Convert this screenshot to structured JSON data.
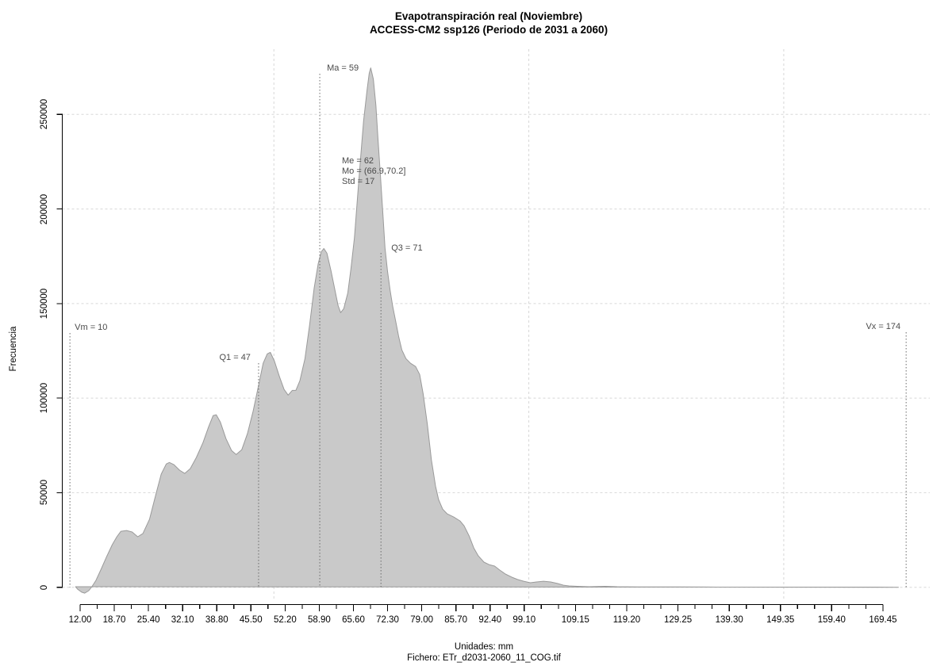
{
  "title": {
    "line1": "Evapotranspiración real (Noviembre)",
    "line2": "ACCESS-CM2 ssp126 (Periodo de 2031 a 2060)"
  },
  "footer": {
    "units": "Unidades: mm",
    "file": "Fichero: ETr_d2031-2060_11_COG.tif"
  },
  "axes": {
    "y": {
      "label": "Frecuencia",
      "tick_values": [
        0,
        50000,
        100000,
        150000,
        200000,
        250000
      ],
      "tick_labels": [
        "0",
        "50000",
        "100000",
        "150000",
        "200000",
        "250000"
      ]
    },
    "x": {
      "minor_step": 3.35,
      "start": 12.0,
      "end": 169.45,
      "major_values": [
        12.0,
        18.7,
        25.4,
        32.1,
        38.8,
        45.5,
        52.2,
        58.9,
        65.6,
        72.3,
        79.0,
        85.7,
        92.4,
        99.1,
        109.15,
        119.2,
        129.25,
        139.3,
        149.35,
        159.4,
        169.45
      ],
      "major_labels": [
        "12.00",
        "18.70",
        "25.40",
        "32.10",
        "38.80",
        "45.50",
        "52.20",
        "58.90",
        "65.60",
        "72.30",
        "79.00",
        "85.70",
        "92.40",
        "99.10",
        "109.15",
        "119.20",
        "129.25",
        "139.30",
        "149.35",
        "159.40",
        "169.45"
      ]
    }
  },
  "chart_data": {
    "type": "area",
    "title": "Evapotranspiración real (Noviembre) — ACCESS-CM2 ssp126 (Periodo de 2031 a 2060)",
    "xlabel": "Unidades: mm",
    "ylabel": "Frecuencia",
    "xlim": [
      12.0,
      181.0
    ],
    "ylim": [
      0,
      250000
    ],
    "grid": {
      "h_values": [
        0,
        50000,
        100000,
        150000,
        200000,
        250000
      ],
      "v_values": [
        50,
        100,
        150
      ]
    },
    "stats": {
      "Vm": 10,
      "Q1": 47,
      "Ma": 59,
      "Me": 62,
      "Mo": "(66.9,70.2]",
      "Std": 17,
      "Q3": 71,
      "Vx": 174
    },
    "stats_box": [
      "Me = 62",
      "Mo = (66.9,70.2]",
      "Std = 17"
    ],
    "markers": [
      {
        "id": "Vm",
        "label": "Vm = 10",
        "value": 10
      },
      {
        "id": "Q1",
        "label": "Q1 = 47",
        "value": 47
      },
      {
        "id": "Ma",
        "label": "Ma = 59",
        "value": 59
      },
      {
        "id": "Q3",
        "label": "Q3 = 71",
        "value": 71
      },
      {
        "id": "Vx",
        "label": "Vx = 174",
        "value": 174
      }
    ],
    "points": [
      [
        11.1,
        300
      ],
      [
        11.5,
        -1000
      ],
      [
        12.3,
        -2600
      ],
      [
        12.9,
        -3100
      ],
      [
        13.7,
        -1800
      ],
      [
        14.3,
        300
      ],
      [
        15.1,
        3600
      ],
      [
        16.1,
        9500
      ],
      [
        17.2,
        16200
      ],
      [
        18.3,
        22500
      ],
      [
        19.2,
        26700
      ],
      [
        20.0,
        29600
      ],
      [
        21.1,
        30000
      ],
      [
        22.2,
        29200
      ],
      [
        23.3,
        26700
      ],
      [
        24.3,
        28400
      ],
      [
        25.6,
        35900
      ],
      [
        26.8,
        48500
      ],
      [
        27.9,
        59800
      ],
      [
        28.9,
        65200
      ],
      [
        29.5,
        66000
      ],
      [
        30.4,
        64800
      ],
      [
        31.5,
        61900
      ],
      [
        32.5,
        60200
      ],
      [
        33.6,
        62700
      ],
      [
        34.8,
        68600
      ],
      [
        36.1,
        76500
      ],
      [
        37.2,
        84900
      ],
      [
        38.1,
        90800
      ],
      [
        38.7,
        91200
      ],
      [
        39.5,
        87400
      ],
      [
        40.6,
        78600
      ],
      [
        41.7,
        72300
      ],
      [
        42.6,
        70200
      ],
      [
        43.7,
        72700
      ],
      [
        44.8,
        81100
      ],
      [
        45.9,
        92800
      ],
      [
        47.0,
        106700
      ],
      [
        47.9,
        118400
      ],
      [
        48.7,
        123400
      ],
      [
        49.3,
        124200
      ],
      [
        50.1,
        119600
      ],
      [
        51.1,
        111300
      ],
      [
        52.0,
        104600
      ],
      [
        52.8,
        101600
      ],
      [
        53.6,
        104100
      ],
      [
        54.3,
        104100
      ],
      [
        55.1,
        109200
      ],
      [
        56.1,
        120900
      ],
      [
        57.0,
        138500
      ],
      [
        57.9,
        158200
      ],
      [
        58.7,
        171100
      ],
      [
        59.3,
        177400
      ],
      [
        59.8,
        179100
      ],
      [
        60.4,
        176600
      ],
      [
        61.2,
        167400
      ],
      [
        62.0,
        156900
      ],
      [
        62.6,
        148900
      ],
      [
        63.1,
        145200
      ],
      [
        63.7,
        147300
      ],
      [
        64.5,
        155600
      ],
      [
        65.1,
        168200
      ],
      [
        65.8,
        185000
      ],
      [
        66.4,
        205900
      ],
      [
        67.0,
        226800
      ],
      [
        67.6,
        246500
      ],
      [
        68.3,
        263300
      ],
      [
        68.7,
        271700
      ],
      [
        69.0,
        274600
      ],
      [
        69.5,
        268700
      ],
      [
        70.0,
        254900
      ],
      [
        70.4,
        238100
      ],
      [
        70.9,
        217200
      ],
      [
        71.4,
        196300
      ],
      [
        71.8,
        179500
      ],
      [
        72.3,
        167000
      ],
      [
        72.8,
        156900
      ],
      [
        73.3,
        148500
      ],
      [
        73.9,
        140600
      ],
      [
        74.5,
        132200
      ],
      [
        75.1,
        125500
      ],
      [
        75.9,
        120900
      ],
      [
        76.8,
        118400
      ],
      [
        77.8,
        116700
      ],
      [
        78.6,
        112500
      ],
      [
        79.3,
        102000
      ],
      [
        80.1,
        86100
      ],
      [
        80.9,
        67300
      ],
      [
        81.7,
        53500
      ],
      [
        82.3,
        46400
      ],
      [
        83.1,
        41300
      ],
      [
        84.0,
        38800
      ],
      [
        85.3,
        37100
      ],
      [
        86.5,
        35100
      ],
      [
        87.3,
        32500
      ],
      [
        88.3,
        27100
      ],
      [
        89.2,
        20800
      ],
      [
        90.1,
        16600
      ],
      [
        91.2,
        13300
      ],
      [
        92.2,
        12000
      ],
      [
        93.3,
        11200
      ],
      [
        94.3,
        9100
      ],
      [
        95.4,
        7000
      ],
      [
        96.7,
        5300
      ],
      [
        97.8,
        4100
      ],
      [
        99.0,
        3200
      ],
      [
        100.3,
        2400
      ],
      [
        101.5,
        2800
      ],
      [
        102.9,
        3200
      ],
      [
        104.3,
        2800
      ],
      [
        105.6,
        2000
      ],
      [
        106.8,
        1100
      ],
      [
        107.9,
        700
      ],
      [
        109.5,
        500
      ],
      [
        111.8,
        300
      ],
      [
        115.0,
        500
      ],
      [
        117.3,
        300
      ],
      [
        121.2,
        200
      ],
      [
        129.0,
        200
      ],
      [
        136.8,
        100
      ],
      [
        144.7,
        100
      ],
      [
        152.5,
        100
      ],
      [
        161.9,
        100
      ],
      [
        168.1,
        100
      ],
      [
        172.5,
        0
      ]
    ]
  },
  "colors": {
    "fill": "#c9c9c9",
    "outline": "#9a9a9a",
    "grid": "#d8d8d8",
    "marker_line": "#6b6b6b",
    "annotation_text": "#4a4a4a",
    "axis": "#000000"
  }
}
